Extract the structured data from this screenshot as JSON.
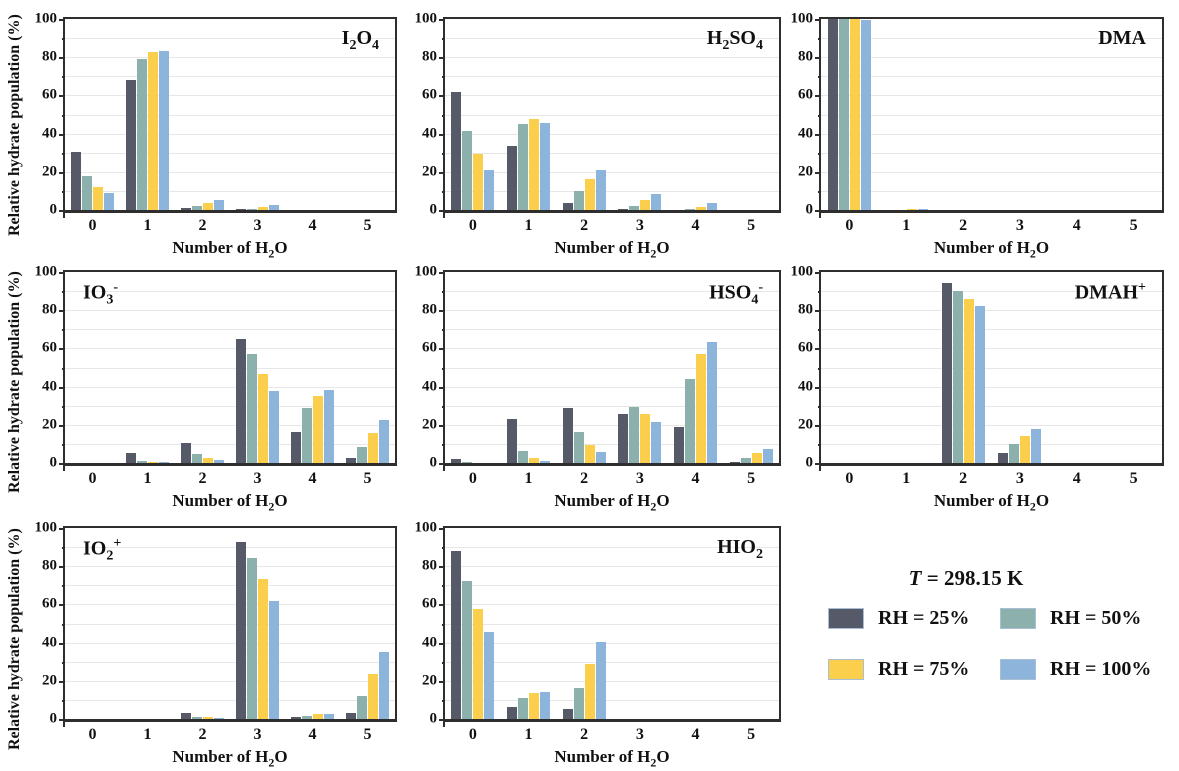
{
  "axis": {
    "y_label": "Relative hydrate population (%)",
    "x_label_html": "Number of H<sub>2</sub>O",
    "y_ticks": [
      0,
      20,
      40,
      60,
      80,
      100
    ],
    "y_minor_ticks": [
      10,
      30,
      50,
      70,
      90
    ],
    "gridlines_every": 10,
    "ylim": [
      0,
      100
    ],
    "x_ticks": [
      "0",
      "1",
      "2",
      "3",
      "4",
      "5"
    ]
  },
  "legend": {
    "title_html": "<i>T</i> = 298.15 K",
    "entries": [
      {
        "label": "RH = 25%",
        "color": "#565a68"
      },
      {
        "label": "RH = 50%",
        "color": "#8cb0ac"
      },
      {
        "label": "RH = 75%",
        "color": "#fbcf4b"
      },
      {
        "label": "RH = 100%",
        "color": "#8db5db"
      }
    ]
  },
  "style": {
    "grid_color": "#e7e7e7",
    "frame_color": "#2e2e2e",
    "swatch_border": "#a9bfd6"
  },
  "chart_data": [
    {
      "type": "bar",
      "title_html": "I<sub>2</sub>O<sub>4</sub>",
      "title_pos": "right",
      "categories": [
        0,
        1,
        2,
        3,
        4,
        5
      ],
      "series": [
        {
          "name": "RH = 25%",
          "values": [
            30.5,
            68,
            1,
            0.5,
            0,
            0
          ]
        },
        {
          "name": "RH = 50%",
          "values": [
            18,
            79,
            2,
            0.5,
            0,
            0
          ]
        },
        {
          "name": "RH = 75%",
          "values": [
            12,
            82.5,
            3.5,
            1.5,
            0,
            0
          ]
        },
        {
          "name": "RH = 100%",
          "values": [
            9,
            83,
            5,
            2.5,
            0,
            0
          ]
        }
      ]
    },
    {
      "type": "bar",
      "title_html": "H<sub>2</sub>SO<sub>4</sub>",
      "title_pos": "right",
      "categories": [
        0,
        1,
        2,
        3,
        4,
        5
      ],
      "series": [
        {
          "name": "RH = 25%",
          "values": [
            62,
            33.5,
            3.5,
            0.3,
            0,
            0
          ]
        },
        {
          "name": "RH = 50%",
          "values": [
            41.5,
            45,
            10,
            2,
            0.5,
            0
          ]
        },
        {
          "name": "RH = 75%",
          "values": [
            29.5,
            47.5,
            16.5,
            5,
            1.5,
            0
          ]
        },
        {
          "name": "RH = 100%",
          "values": [
            21,
            45.5,
            21,
            8.5,
            3.5,
            0
          ]
        }
      ]
    },
    {
      "type": "bar",
      "title_html": "DMA",
      "title_pos": "right",
      "categories": [
        0,
        1,
        2,
        3,
        4,
        5
      ],
      "series": [
        {
          "name": "RH = 25%",
          "values": [
            100,
            0,
            0,
            0,
            0,
            0
          ]
        },
        {
          "name": "RH = 50%",
          "values": [
            100,
            0,
            0,
            0,
            0,
            0
          ]
        },
        {
          "name": "RH = 75%",
          "values": [
            100,
            0.2,
            0,
            0,
            0,
            0
          ]
        },
        {
          "name": "RH = 100%",
          "values": [
            99.5,
            0.5,
            0,
            0,
            0,
            0
          ]
        }
      ]
    },
    {
      "type": "bar",
      "title_html": "IO<sub>3</sub><sup>-</sup>",
      "title_pos": "left",
      "categories": [
        0,
        1,
        2,
        3,
        4,
        5
      ],
      "series": [
        {
          "name": "RH = 25%",
          "values": [
            0,
            5,
            10.5,
            65,
            16.5,
            2.5
          ]
        },
        {
          "name": "RH = 50%",
          "values": [
            0,
            1,
            4.5,
            57,
            29,
            8.5
          ]
        },
        {
          "name": "RH = 75%",
          "values": [
            0,
            0.3,
            2.5,
            46.5,
            35,
            15.5
          ]
        },
        {
          "name": "RH = 100%",
          "values": [
            0,
            0.3,
            1.5,
            37.5,
            38,
            22.5
          ]
        }
      ]
    },
    {
      "type": "bar",
      "title_html": "HSO<sub>4</sub><sup>-</sup>",
      "title_pos": "right",
      "categories": [
        0,
        1,
        2,
        3,
        4,
        5
      ],
      "series": [
        {
          "name": "RH = 25%",
          "values": [
            2.3,
            23,
            29,
            25.5,
            19,
            0.5
          ]
        },
        {
          "name": "RH = 50%",
          "values": [
            0.2,
            6.5,
            16.5,
            29.5,
            44,
            2.5
          ]
        },
        {
          "name": "RH = 75%",
          "values": [
            0,
            2.5,
            9.5,
            25.5,
            57,
            5
          ]
        },
        {
          "name": "RH = 100%",
          "values": [
            0,
            1,
            6,
            21.5,
            63.5,
            7.5
          ]
        }
      ]
    },
    {
      "type": "bar",
      "title_html": "DMAH<sup>+</sup>",
      "title_pos": "right",
      "categories": [
        0,
        1,
        2,
        3,
        4,
        5
      ],
      "series": [
        {
          "name": "RH = 25%",
          "values": [
            0,
            0,
            94.5,
            5,
            0,
            0
          ]
        },
        {
          "name": "RH = 50%",
          "values": [
            0,
            0,
            90,
            10,
            0,
            0
          ]
        },
        {
          "name": "RH = 75%",
          "values": [
            0,
            0,
            86,
            14,
            0,
            0
          ]
        },
        {
          "name": "RH = 100%",
          "values": [
            0,
            0,
            82,
            18,
            0,
            0
          ]
        }
      ]
    },
    {
      "type": "bar",
      "title_html": "IO<sub>2</sub><sup>+</sup>",
      "title_pos": "left",
      "categories": [
        0,
        1,
        2,
        3,
        4,
        5
      ],
      "series": [
        {
          "name": "RH = 25%",
          "values": [
            0,
            0,
            3,
            92.5,
            0.8,
            3.2
          ]
        },
        {
          "name": "RH = 50%",
          "values": [
            0,
            0,
            1.2,
            84.5,
            1.8,
            12
          ]
        },
        {
          "name": "RH = 75%",
          "values": [
            0,
            0,
            0.8,
            73.5,
            2.5,
            23.5
          ]
        },
        {
          "name": "RH = 100%",
          "values": [
            0,
            0,
            0.3,
            62,
            2.8,
            35
          ]
        }
      ]
    },
    {
      "type": "bar",
      "title_html": "HIO<sub>2</sub>",
      "title_pos": "right",
      "categories": [
        0,
        1,
        2,
        3,
        4,
        5
      ],
      "series": [
        {
          "name": "RH = 25%",
          "values": [
            88,
            6.5,
            5,
            0,
            0,
            0
          ]
        },
        {
          "name": "RH = 50%",
          "values": [
            72.5,
            11,
            16,
            0,
            0,
            0
          ]
        },
        {
          "name": "RH = 75%",
          "values": [
            57.5,
            13.5,
            29,
            0,
            0,
            0
          ]
        },
        {
          "name": "RH = 100%",
          "values": [
            45.5,
            14,
            40.5,
            0,
            0,
            0
          ]
        }
      ]
    }
  ]
}
